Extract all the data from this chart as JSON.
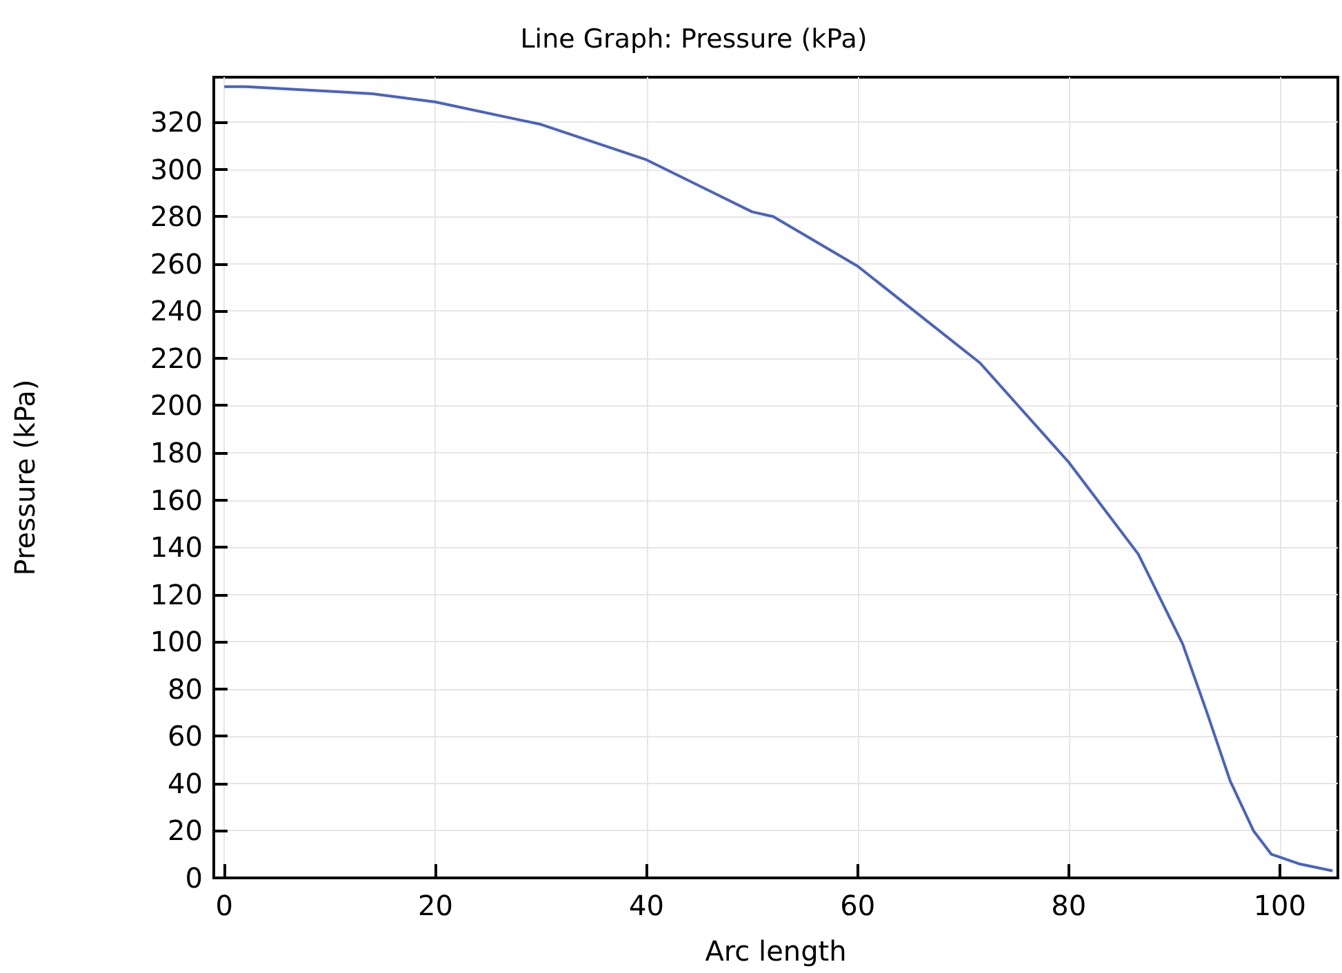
{
  "chart_data": {
    "type": "line",
    "title": "Line Graph: Pressure (kPa)",
    "xlabel": "Arc length",
    "ylabel": "Pressure (kPa)",
    "x": [
      0,
      2,
      14,
      20,
      30,
      40,
      50,
      52,
      60,
      71.6,
      80,
      86.6,
      90.8,
      93.1,
      95.3,
      97.5,
      99.2,
      101.8,
      105
    ],
    "series": [
      {
        "color": "#4a63c0",
        "values": [
          335,
          335,
          332,
          328.5,
          319,
          304,
          282,
          280,
          259,
          218,
          176,
          137,
          99,
          70,
          41,
          20,
          10,
          6,
          3
        ]
      }
    ],
    "xlim": [
      -1,
      105.5
    ],
    "xticks": [
      0,
      20,
      40,
      60,
      80,
      100
    ],
    "ylim": [
      0,
      339
    ],
    "yticks": [
      0,
      20,
      40,
      60,
      80,
      100,
      120,
      140,
      160,
      180,
      200,
      220,
      240,
      260,
      280,
      300,
      320
    ],
    "grid": true,
    "marker": "none",
    "line_style": "solid"
  }
}
